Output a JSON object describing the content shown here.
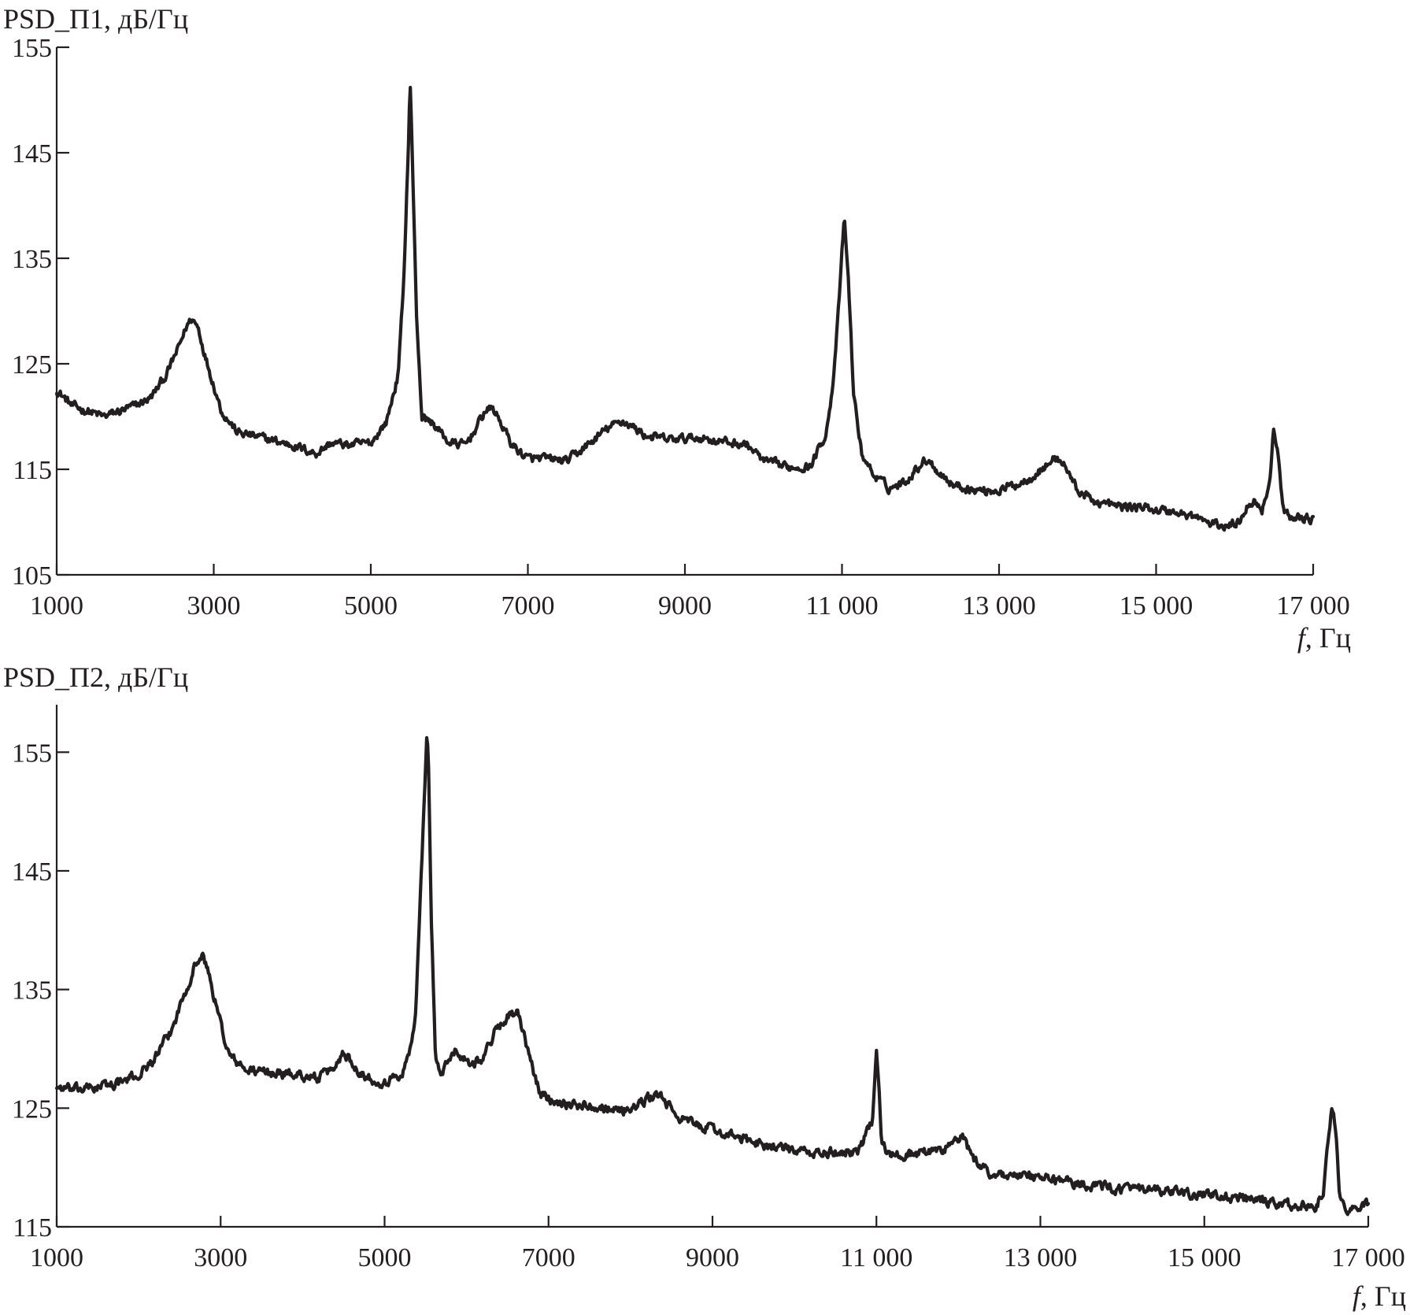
{
  "chart_data": [
    {
      "type": "line",
      "ylabel": "PSD_П1, дБ/Гц",
      "xlabel_var": "f",
      "xlabel_unit": ", Гц",
      "xlim": [
        1000,
        17000
      ],
      "ylim": [
        105,
        155
      ],
      "xticks": [
        1000,
        3000,
        5000,
        7000,
        9000,
        11000,
        13000,
        15000,
        17000
      ],
      "xtick_labels": [
        "1000",
        "3000",
        "5000",
        "7000",
        "9000",
        "11 000",
        "13 000",
        "15 000",
        "17 000"
      ],
      "yticks": [
        105,
        115,
        125,
        135,
        145,
        155
      ],
      "ytick_labels": [
        "105",
        "115",
        "125",
        "135",
        "145",
        "155"
      ],
      "grid": false,
      "series": [
        {
          "x": [
            1000,
            1200,
            1400,
            1600,
            1800,
            2000,
            2200,
            2400,
            2550,
            2650,
            2720,
            2800,
            2900,
            3000,
            3100,
            3300,
            3600,
            4000,
            4300,
            4500,
            4700,
            5000,
            5200,
            5350,
            5420,
            5480,
            5500,
            5520,
            5580,
            5650,
            5800,
            6000,
            6200,
            6350,
            6450,
            6550,
            6650,
            6800,
            7000,
            7200,
            7500,
            7800,
            8000,
            8200,
            8300,
            8500,
            8800,
            9200,
            9500,
            9800,
            10000,
            10300,
            10600,
            10800,
            10900,
            10980,
            11030,
            11080,
            11150,
            11250,
            11400,
            11600,
            11800,
            12000,
            12100,
            12200,
            12400,
            12700,
            13000,
            13300,
            13550,
            13700,
            13800,
            13900,
            14000,
            14200,
            14500,
            14800,
            15200,
            15500,
            15700,
            15900,
            16050,
            16150,
            16250,
            16350,
            16450,
            16500,
            16550,
            16620,
            16700,
            16850,
            17000
          ],
          "y": [
            122.5,
            121,
            120.5,
            120,
            120.5,
            121,
            121.8,
            124,
            126.5,
            128.5,
            129.3,
            128.5,
            125.5,
            123,
            120.5,
            118.5,
            118,
            117.3,
            116.5,
            117.5,
            117.3,
            117.5,
            119.5,
            124,
            133,
            146,
            152,
            147,
            130,
            120,
            119.3,
            117.5,
            117.3,
            119,
            120.5,
            120.8,
            119.5,
            117.3,
            116,
            116,
            115.8,
            117.5,
            118.8,
            119.6,
            119.2,
            118.2,
            117.8,
            118,
            117.6,
            117.3,
            115.8,
            115.2,
            115.3,
            118.5,
            124,
            133,
            139,
            133,
            122,
            116.5,
            114.5,
            113.2,
            113.8,
            115.5,
            116,
            115,
            113.6,
            113,
            113,
            113.8,
            115,
            116,
            115.8,
            114.5,
            113,
            112,
            111.5,
            111.4,
            111,
            110.5,
            109.8,
            109.6,
            110,
            111.5,
            112,
            111.2,
            114,
            119,
            116.5,
            111,
            110.5,
            110.5,
            110.2
          ]
        }
      ]
    },
    {
      "type": "line",
      "ylabel": "PSD_П2, дБ/Гц",
      "xlabel_var": "f",
      "xlabel_unit": ", Гц",
      "xlim": [
        1000,
        17000
      ],
      "ylim": [
        115,
        159
      ],
      "xticks": [
        1000,
        3000,
        5000,
        7000,
        9000,
        11000,
        13000,
        15000,
        17000
      ],
      "xtick_labels": [
        "1000",
        "3000",
        "5000",
        "7000",
        "9000",
        "11 000",
        "13 000",
        "15 000",
        "17 000"
      ],
      "yticks": [
        115,
        125,
        135,
        145,
        155
      ],
      "ytick_labels": [
        "115",
        "125",
        "135",
        "145",
        "155"
      ],
      "grid": false,
      "series": [
        {
          "x": [
            1000,
            1200,
            1500,
            1800,
            2000,
            2200,
            2400,
            2550,
            2700,
            2780,
            2850,
            2950,
            3100,
            3300,
            3600,
            4000,
            4200,
            4400,
            4500,
            4600,
            4800,
            5000,
            5200,
            5300,
            5380,
            5450,
            5520,
            5540,
            5570,
            5620,
            5680,
            5750,
            5850,
            5950,
            6050,
            6200,
            6350,
            6500,
            6620,
            6700,
            6800,
            6900,
            7000,
            7300,
            7600,
            7900,
            8100,
            8300,
            8400,
            8500,
            8700,
            9000,
            9300,
            9600,
            9900,
            10200,
            10500,
            10800,
            10950,
            11000,
            11030,
            11060,
            11120,
            11200,
            11500,
            11800,
            11950,
            12050,
            12200,
            12400,
            12800,
            13200,
            13600,
            14000,
            14400,
            14800,
            15200,
            15500,
            15800,
            16100,
            16350,
            16450,
            16550,
            16600,
            16650,
            16700,
            16800,
            17000
          ],
          "y": [
            126.8,
            126.5,
            126.8,
            127.2,
            127.8,
            129.2,
            131.5,
            134.5,
            137.3,
            137.8,
            136.5,
            133.5,
            129.5,
            128.2,
            128,
            127.8,
            127.5,
            128.5,
            129.8,
            128.8,
            127.5,
            127.2,
            127.8,
            129.5,
            133,
            145,
            157,
            153,
            141,
            129.5,
            127.8,
            128.5,
            130,
            129.3,
            128.8,
            129.2,
            131.5,
            132.8,
            133,
            131,
            128.5,
            126.2,
            125.8,
            125.3,
            125.2,
            124.8,
            125.2,
            126.2,
            125.8,
            124.8,
            123.8,
            123.2,
            122.5,
            122,
            121.5,
            121.2,
            121.2,
            121.5,
            124,
            130,
            127.5,
            122.5,
            121.3,
            121,
            121.2,
            121.5,
            122.2,
            122.5,
            120.5,
            119.5,
            119.2,
            119,
            118.5,
            118.2,
            118,
            117.8,
            117.6,
            117.3,
            117,
            116.8,
            116.6,
            118,
            124.8,
            123.5,
            118,
            116.5,
            116.5,
            116.8
          ]
        }
      ]
    }
  ]
}
